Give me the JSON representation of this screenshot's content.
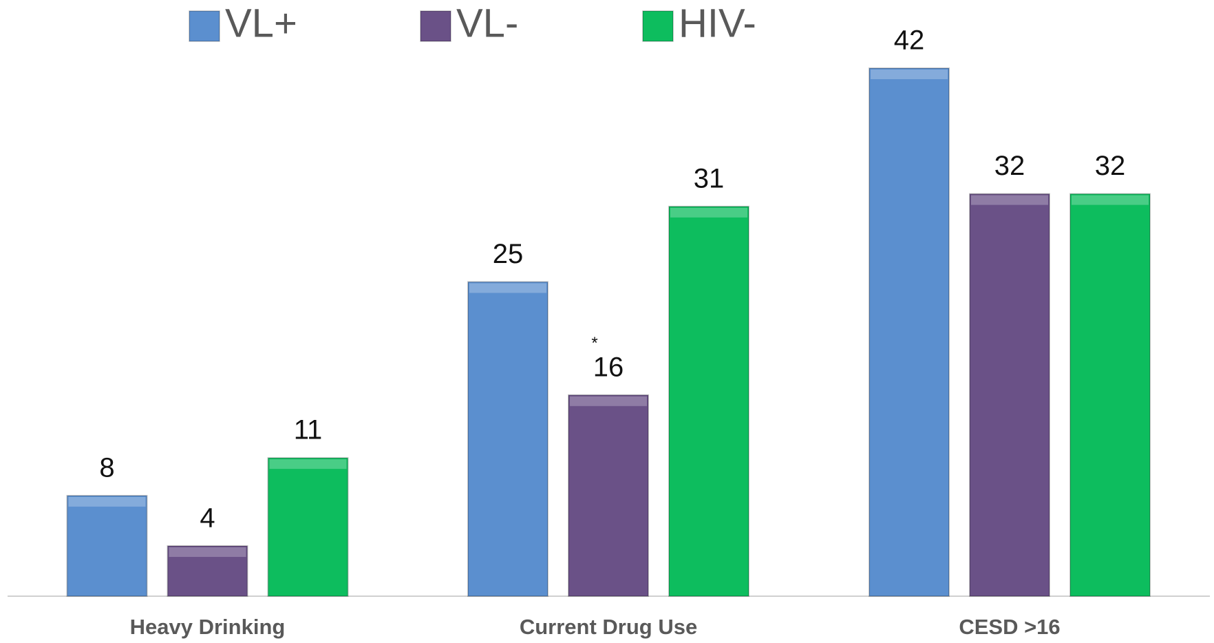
{
  "chart_data": {
    "type": "bar",
    "categories": [
      "Heavy Drinking",
      "Current Drug Use",
      "CESD >16"
    ],
    "series": [
      {
        "name": "VL+",
        "color": "#5b8fcf",
        "values": [
          8,
          25,
          42
        ]
      },
      {
        "name": "VL-",
        "color": "#6a5187",
        "values": [
          4,
          16,
          32
        ]
      },
      {
        "name": "HIV-",
        "color": "#0dbd5e",
        "values": [
          11,
          31,
          32
        ]
      }
    ],
    "annotation": "*"
  }
}
